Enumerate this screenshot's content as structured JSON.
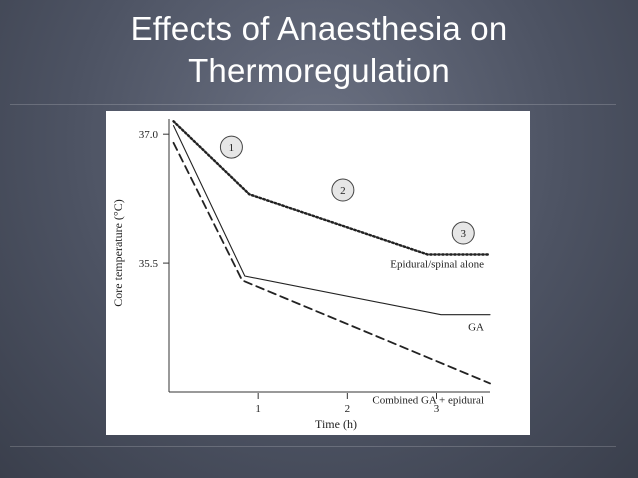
{
  "slide": {
    "title_line1": "Effects of Anaesthesia on",
    "title_line2": "Thermoregulation"
  },
  "chart_data": {
    "type": "line",
    "title": "",
    "xlabel": "Time (h)",
    "ylabel": "Core temperature (°C)",
    "xlim": [
      0,
      3.6
    ],
    "ylim": [
      34,
      37.2
    ],
    "x_ticks": [
      {
        "value": 1,
        "label": "1"
      },
      {
        "value": 2,
        "label": "2"
      },
      {
        "value": 3,
        "label": "3"
      }
    ],
    "y_ticks": [
      {
        "value": 37.0,
        "label": "37.0"
      },
      {
        "value": 35.5,
        "label": "35.5"
      }
    ],
    "grid": false,
    "legend": "none",
    "series": [
      {
        "name": "Epidural/spinal alone",
        "style": "dotted",
        "points": [
          [
            0.05,
            37.15
          ],
          [
            0.9,
            36.3
          ],
          [
            2.9,
            35.6
          ],
          [
            3.6,
            35.6
          ]
        ]
      },
      {
        "name": "GA",
        "style": "solid",
        "points": [
          [
            0.05,
            37.1
          ],
          [
            0.85,
            35.35
          ],
          [
            3.05,
            34.9
          ],
          [
            3.6,
            34.9
          ]
        ]
      },
      {
        "name": "Combined GA + epidural",
        "style": "dashed",
        "points": [
          [
            0.05,
            36.9
          ],
          [
            0.82,
            35.3
          ],
          [
            3.6,
            34.1
          ]
        ]
      }
    ],
    "phase_annotations": [
      {
        "label": "1",
        "x": 0.7,
        "y": 36.85
      },
      {
        "label": "2",
        "x": 1.95,
        "y": 36.35
      },
      {
        "label": "3",
        "x": 3.3,
        "y": 35.85
      }
    ]
  }
}
